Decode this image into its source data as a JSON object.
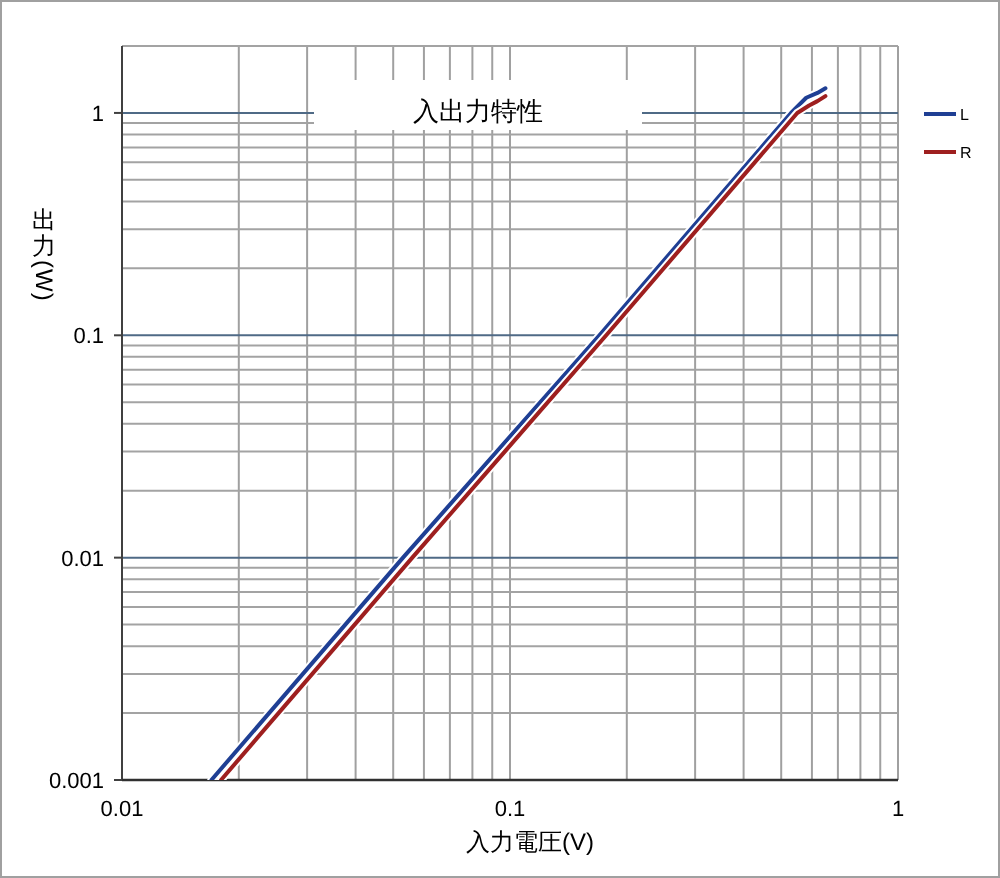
{
  "chart_data": {
    "type": "line",
    "title": "入出力特性",
    "xlabel": "入力電圧(V)",
    "ylabel": "出力(W)",
    "log": "xy",
    "xlim": [
      0.01,
      1
    ],
    "ylim": [
      0.001,
      2
    ],
    "xticks": [
      0.01,
      {
        "value": 0.02,
        "label": null
      },
      {
        "value": 0.03,
        "label": null
      },
      {
        "value": 0.04,
        "label": null
      },
      {
        "value": 0.05,
        "label": null
      },
      {
        "value": 0.06,
        "label": null
      },
      {
        "value": 0.07,
        "label": null
      },
      {
        "value": 0.08,
        "label": null
      },
      {
        "value": 0.09,
        "label": null
      },
      0.1,
      {
        "value": 0.2,
        "label": null
      },
      {
        "value": 0.3,
        "label": null
      },
      {
        "value": 0.4,
        "label": null
      },
      {
        "value": 0.5,
        "label": null
      },
      {
        "value": 0.6,
        "label": null
      },
      {
        "value": 0.7,
        "label": null
      },
      {
        "value": 0.8,
        "label": null
      },
      {
        "value": 0.9,
        "label": null
      },
      1
    ],
    "yticks": [
      0.001,
      {
        "value": 0.002,
        "label": null
      },
      {
        "value": 0.003,
        "label": null
      },
      {
        "value": 0.004,
        "label": null
      },
      {
        "value": 0.005,
        "label": null
      },
      {
        "value": 0.006,
        "label": null
      },
      {
        "value": 0.007,
        "label": null
      },
      {
        "value": 0.008,
        "label": null
      },
      {
        "value": 0.009,
        "label": null
      },
      0.01,
      {
        "value": 0.02,
        "label": null
      },
      {
        "value": 0.03,
        "label": null
      },
      {
        "value": 0.04,
        "label": null
      },
      {
        "value": 0.05,
        "label": null
      },
      {
        "value": 0.06,
        "label": null
      },
      {
        "value": 0.07,
        "label": null
      },
      {
        "value": 0.08,
        "label": null
      },
      {
        "value": 0.09,
        "label": null
      },
      0.1,
      {
        "value": 0.2,
        "label": null
      },
      {
        "value": 0.3,
        "label": null
      },
      {
        "value": 0.4,
        "label": null
      },
      {
        "value": 0.5,
        "label": null
      },
      {
        "value": 0.6,
        "label": null
      },
      {
        "value": 0.7,
        "label": null
      },
      {
        "value": 0.8,
        "label": null
      },
      {
        "value": 0.9,
        "label": null
      },
      1,
      {
        "value": 2,
        "label": null
      }
    ],
    "grid": true,
    "legend": "right",
    "line_style": "solid",
    "series": [
      {
        "name": "L",
        "color": "#1f3f94",
        "x": [
          0.017,
          0.053,
          0.17,
          0.53,
          0.58,
          0.62,
          0.65
        ],
        "values": [
          0.001,
          0.01,
          0.1,
          1,
          1.17,
          1.23,
          1.29
        ]
      },
      {
        "name": "R",
        "color": "#9e1f1f",
        "x": [
          0.018,
          0.056,
          0.177,
          0.55,
          0.59,
          0.62,
          0.65
        ],
        "values": [
          0.001,
          0.01,
          0.1,
          1,
          1.08,
          1.13,
          1.19
        ]
      }
    ]
  }
}
